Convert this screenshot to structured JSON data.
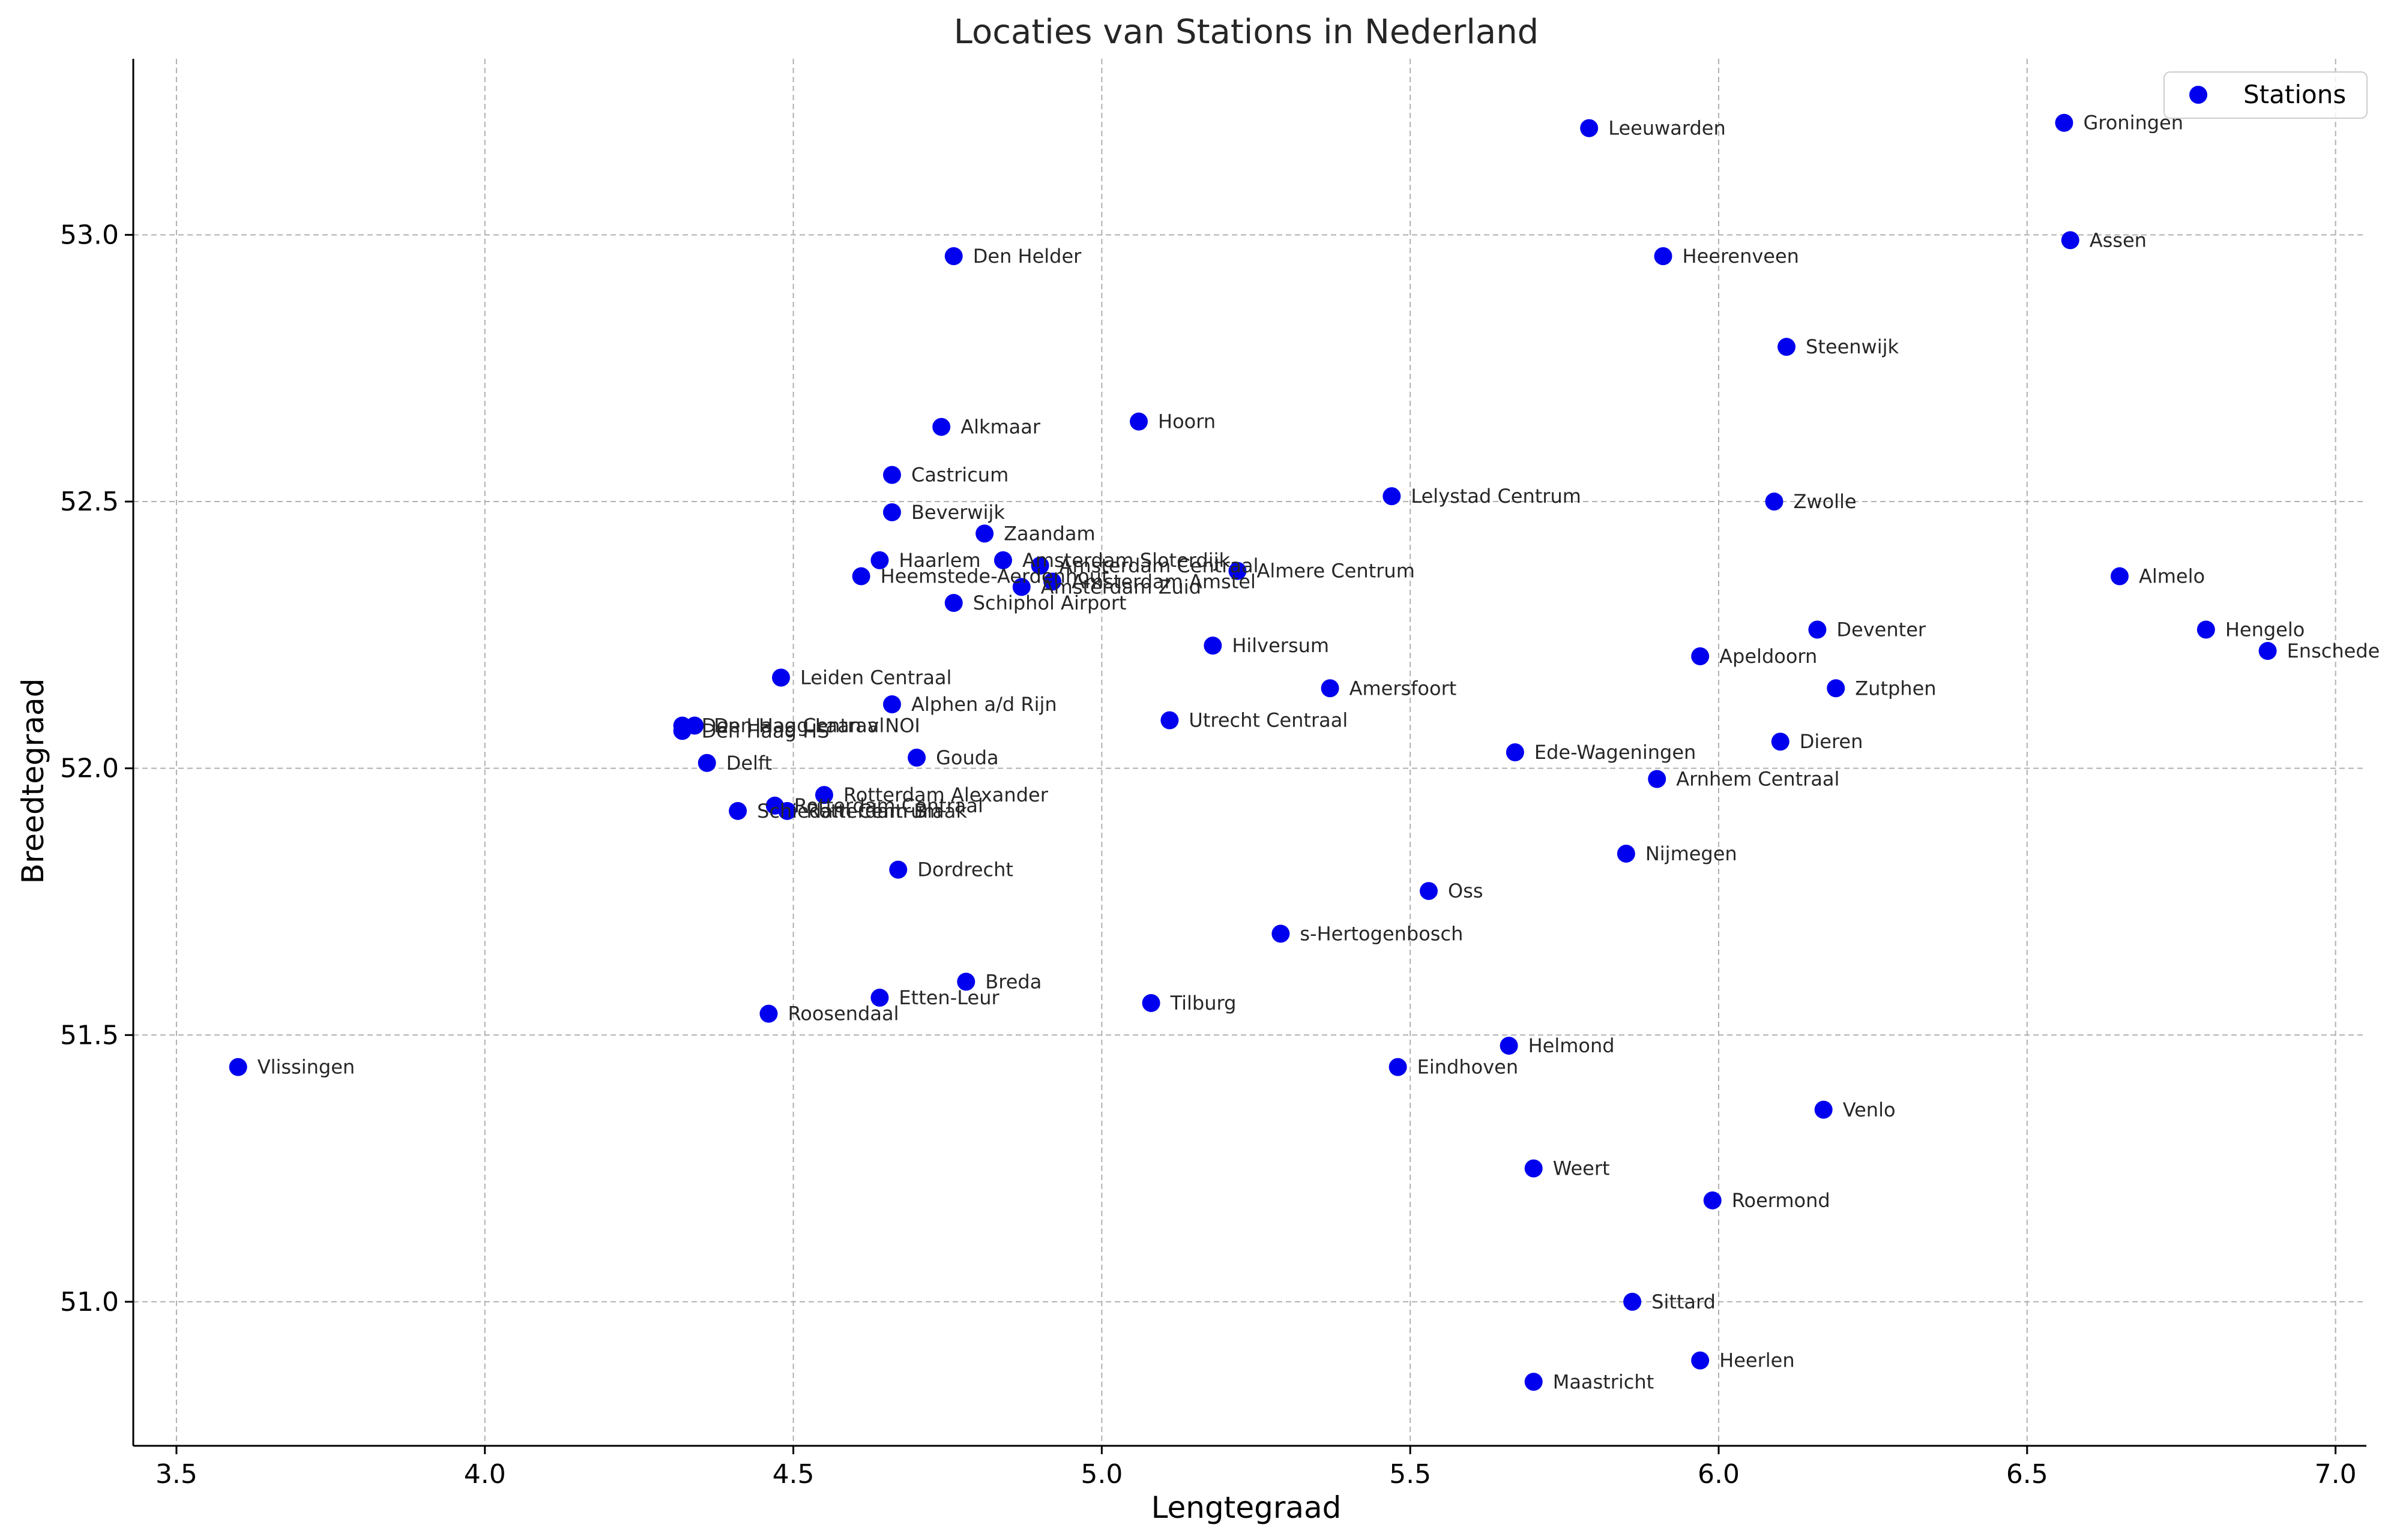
{
  "chart_data": {
    "type": "scatter",
    "title": "Locaties van Stations in Nederland",
    "xlabel": "Lengtegraad",
    "ylabel": "Breedtegraad",
    "xlim": [
      3.43,
      7.05
    ],
    "ylim": [
      50.73,
      53.33
    ],
    "xticks": [
      "3.5",
      "4.0",
      "4.5",
      "5.0",
      "5.5",
      "6.0",
      "6.5",
      "7.0"
    ],
    "yticks": [
      "51.0",
      "51.5",
      "52.0",
      "52.5",
      "53.0"
    ],
    "grid": true,
    "legend": {
      "position": "top-right",
      "entries": [
        "Stations"
      ]
    },
    "marker_color": "#0000ee",
    "series": [
      {
        "name": "Stations",
        "points": [
          {
            "label": "Groningen",
            "x": 6.56,
            "y": 53.21
          },
          {
            "label": "Leeuwarden",
            "x": 5.79,
            "y": 53.2
          },
          {
            "label": "Assen",
            "x": 6.57,
            "y": 52.99
          },
          {
            "label": "Heerenveen",
            "x": 5.91,
            "y": 52.96
          },
          {
            "label": "Den Helder",
            "x": 4.76,
            "y": 52.96
          },
          {
            "label": "Steenwijk",
            "x": 6.11,
            "y": 52.79
          },
          {
            "label": "Alkmaar",
            "x": 4.74,
            "y": 52.64
          },
          {
            "label": "Hoorn",
            "x": 5.06,
            "y": 52.65
          },
          {
            "label": "Castricum",
            "x": 4.66,
            "y": 52.55
          },
          {
            "label": "Lelystad Centrum",
            "x": 5.47,
            "y": 52.51
          },
          {
            "label": "Zwolle",
            "x": 6.09,
            "y": 52.5
          },
          {
            "label": "Beverwijk",
            "x": 4.66,
            "y": 52.48
          },
          {
            "label": "Zaandam",
            "x": 4.81,
            "y": 52.44
          },
          {
            "label": "Haarlem",
            "x": 4.64,
            "y": 52.39
          },
          {
            "label": "Amsterdam Sloterdijk",
            "x": 4.84,
            "y": 52.39
          },
          {
            "label": "Amsterdam Centraal",
            "x": 4.9,
            "y": 52.38
          },
          {
            "label": "Almere Centrum",
            "x": 5.22,
            "y": 52.37
          },
          {
            "label": "Heemstede-Aerdenhout",
            "x": 4.61,
            "y": 52.36
          },
          {
            "label": "Amsterdam Amstel",
            "x": 4.92,
            "y": 52.35
          },
          {
            "label": "Amsterdam Zuid",
            "x": 4.87,
            "y": 52.34
          },
          {
            "label": "Almelo",
            "x": 6.65,
            "y": 52.36
          },
          {
            "label": "Schiphol Airport",
            "x": 4.76,
            "y": 52.31
          },
          {
            "label": "Deventer",
            "x": 6.16,
            "y": 52.26
          },
          {
            "label": "Hengelo",
            "x": 6.79,
            "y": 52.26
          },
          {
            "label": "Hilversum",
            "x": 5.18,
            "y": 52.23
          },
          {
            "label": "Enschede",
            "x": 6.89,
            "y": 52.22
          },
          {
            "label": "Apeldoorn",
            "x": 5.97,
            "y": 52.21
          },
          {
            "label": "Leiden Centraal",
            "x": 4.48,
            "y": 52.17
          },
          {
            "label": "Amersfoort",
            "x": 5.37,
            "y": 52.15
          },
          {
            "label": "Zutphen",
            "x": 6.19,
            "y": 52.15
          },
          {
            "label": "Alphen a/d Rijn",
            "x": 4.66,
            "y": 52.12
          },
          {
            "label": "Utrecht Centraal",
            "x": 5.11,
            "y": 52.09
          },
          {
            "label": "Den Haag Centraal",
            "x": 4.32,
            "y": 52.08
          },
          {
            "label": "Den Haag Laan v NOI",
            "x": 4.34,
            "y": 52.08
          },
          {
            "label": "Den Haag HS",
            "x": 4.32,
            "y": 52.07
          },
          {
            "label": "Dieren",
            "x": 6.1,
            "y": 52.05
          },
          {
            "label": "Ede-Wageningen",
            "x": 5.67,
            "y": 52.03
          },
          {
            "label": "Gouda",
            "x": 4.7,
            "y": 52.02
          },
          {
            "label": "Delft",
            "x": 4.36,
            "y": 52.01
          },
          {
            "label": "Arnhem Centraal",
            "x": 5.9,
            "y": 51.98
          },
          {
            "label": "Rotterdam Alexander",
            "x": 4.55,
            "y": 51.95
          },
          {
            "label": "Rotterdam Centraal",
            "x": 4.47,
            "y": 51.93
          },
          {
            "label": "Schiedam Centrum",
            "x": 4.41,
            "y": 51.92
          },
          {
            "label": "Rotterdam Blaak",
            "x": 4.49,
            "y": 51.92
          },
          {
            "label": "Nijmegen",
            "x": 5.85,
            "y": 51.84
          },
          {
            "label": "Dordrecht",
            "x": 4.67,
            "y": 51.81
          },
          {
            "label": "Oss",
            "x": 5.53,
            "y": 51.77
          },
          {
            "label": "s-Hertogenbosch",
            "x": 5.29,
            "y": 51.69
          },
          {
            "label": "Breda",
            "x": 4.78,
            "y": 51.6
          },
          {
            "label": "Etten-Leur",
            "x": 4.64,
            "y": 51.57
          },
          {
            "label": "Tilburg",
            "x": 5.08,
            "y": 51.56
          },
          {
            "label": "Roosendaal",
            "x": 4.46,
            "y": 51.54
          },
          {
            "label": "Helmond",
            "x": 5.66,
            "y": 51.48
          },
          {
            "label": "Vlissingen",
            "x": 3.6,
            "y": 51.44
          },
          {
            "label": "Eindhoven",
            "x": 5.48,
            "y": 51.44
          },
          {
            "label": "Venlo",
            "x": 6.17,
            "y": 51.36
          },
          {
            "label": "Weert",
            "x": 5.7,
            "y": 51.25
          },
          {
            "label": "Roermond",
            "x": 5.99,
            "y": 51.19
          },
          {
            "label": "Sittard",
            "x": 5.86,
            "y": 51.0
          },
          {
            "label": "Heerlen",
            "x": 5.97,
            "y": 50.89
          },
          {
            "label": "Maastricht",
            "x": 5.7,
            "y": 50.85
          }
        ]
      }
    ]
  }
}
